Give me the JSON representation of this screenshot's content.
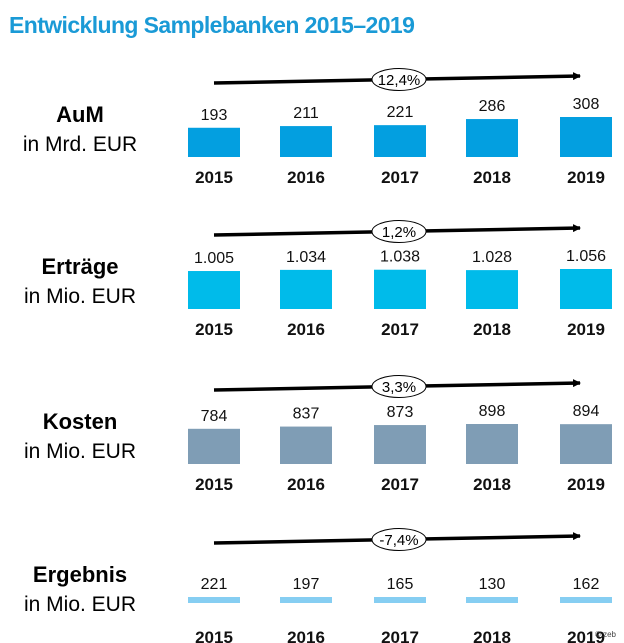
{
  "title": "Entwicklung Samplebanken 2015–2019",
  "copyright": "© zeb",
  "chart_data": [
    {
      "type": "bar",
      "title": "AuM",
      "unit": "in Mrd. EUR",
      "categories": [
        "2015",
        "2016",
        "2017",
        "2018",
        "2019"
      ],
      "values": [
        193,
        211,
        221,
        286,
        308
      ],
      "value_labels": [
        "193",
        "211",
        "221",
        "286",
        "308"
      ],
      "growth_label": "12,4%",
      "color": "#039fe0"
    },
    {
      "type": "bar",
      "title": "Erträge",
      "unit": "in Mio. EUR",
      "categories": [
        "2015",
        "2016",
        "2017",
        "2018",
        "2019"
      ],
      "values": [
        1005,
        1034,
        1038,
        1028,
        1056
      ],
      "value_labels": [
        "1.005",
        "1.034",
        "1.038",
        "1.028",
        "1.056"
      ],
      "growth_label": "1,2%",
      "color": "#00bbea"
    },
    {
      "type": "bar",
      "title": "Kosten",
      "unit": "in Mio. EUR",
      "categories": [
        "2015",
        "2016",
        "2017",
        "2018",
        "2019"
      ],
      "values": [
        784,
        837,
        873,
        898,
        894
      ],
      "value_labels": [
        "784",
        "837",
        "873",
        "898",
        "894"
      ],
      "growth_label": "3,3%",
      "color": "#7f9db5"
    },
    {
      "type": "bar",
      "title": "Ergebnis",
      "unit": "in Mio. EUR",
      "categories": [
        "2015",
        "2016",
        "2017",
        "2018",
        "2019"
      ],
      "values": [
        221,
        197,
        165,
        130,
        162
      ],
      "value_labels": [
        "221",
        "197",
        "165",
        "130",
        "162"
      ],
      "growth_label": "-7,4%",
      "color": "#86cef2"
    }
  ]
}
